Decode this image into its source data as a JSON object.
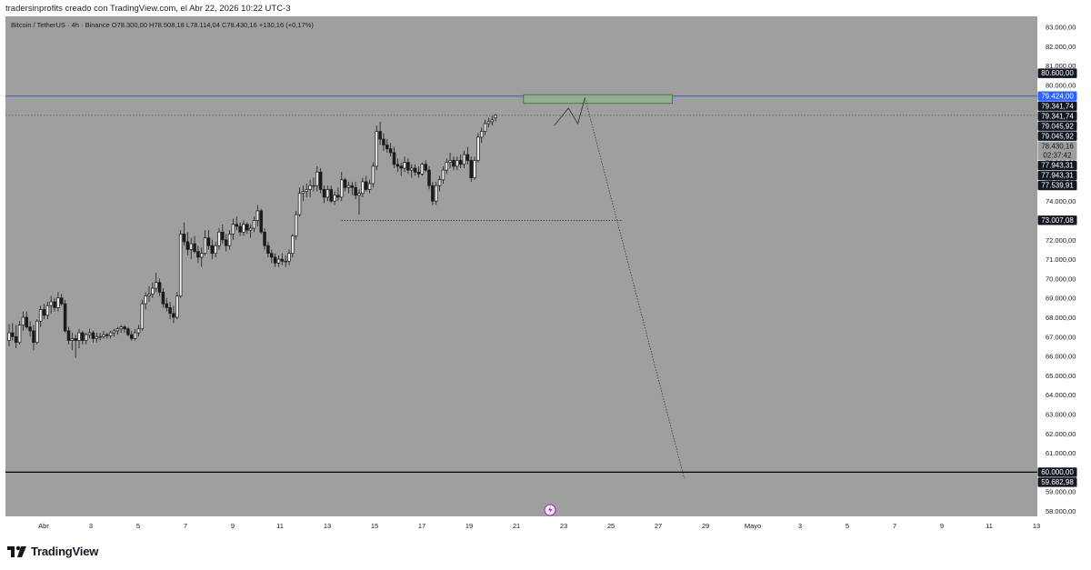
{
  "header": {
    "text": "tradersinprofits creado con TradingView.com, el Abr 22, 2026 10:22 UTC-3"
  },
  "legend": {
    "text": "Bitcoin / TetherUS · 4h · Binance   O78.300,00  H78.508,18  L78.114,04  C78.430,16  +130,16 (+0,17%)"
  },
  "footer": {
    "logo_text": "TradingView"
  },
  "colors": {
    "background": "#9f9f9f",
    "candle": "#1b1b1b",
    "resistance_line": "#2962ff",
    "support_line": "#000000",
    "zone_fill": "#8fb08f",
    "zone_border": "#3d6b3d",
    "axis_text": "#131722"
  },
  "chart_data": {
    "type": "candlestick",
    "symbol": "Bitcoin / TetherUS",
    "interval": "4h",
    "exchange": "Binance",
    "ohlc_last": {
      "open": 78300.0,
      "high": 78508.18,
      "low": 78114.04,
      "close": 78430.16,
      "change": 130.16,
      "change_pct": 0.17
    },
    "y_range": [
      57600,
      83300
    ],
    "y_ticks": [
      "83.000,00",
      "82.000,00",
      "81.000,00",
      "80.000,00",
      "79.000,00",
      "78.000,00",
      "77.000,00",
      "76.000,00",
      "75.000,00",
      "74.000,00",
      "73.000,00",
      "72.000,00",
      "71.000,00",
      "70.000,00",
      "69.000,00",
      "68.000,00",
      "67.000,00",
      "66.000,00",
      "65.000,00",
      "64.000,00",
      "63.000,00",
      "62.000,00",
      "61.000,00",
      "60.000,00",
      "59.000,00",
      "58.000,00"
    ],
    "y_tick_values": [
      83000,
      82000,
      81000,
      80000,
      79000,
      78000,
      77000,
      76000,
      75000,
      74000,
      73000,
      72000,
      71000,
      70000,
      69000,
      68000,
      67000,
      66000,
      65000,
      64000,
      63000,
      62000,
      61000,
      60000,
      59000,
      58000
    ],
    "x_labels": [
      {
        "label": "Abr",
        "day": 1
      },
      {
        "label": "3",
        "day": 3
      },
      {
        "label": "5",
        "day": 5
      },
      {
        "label": "7",
        "day": 7
      },
      {
        "label": "9",
        "day": 9
      },
      {
        "label": "11",
        "day": 11
      },
      {
        "label": "13",
        "day": 13
      },
      {
        "label": "15",
        "day": 15
      },
      {
        "label": "17",
        "day": 17
      },
      {
        "label": "19",
        "day": 19
      },
      {
        "label": "21",
        "day": 21
      },
      {
        "label": "23",
        "day": 23
      },
      {
        "label": "25",
        "day": 25
      },
      {
        "label": "27",
        "day": 27
      },
      {
        "label": "29",
        "day": 29
      },
      {
        "label": "Mayo",
        "day": 31
      },
      {
        "label": "3",
        "day": 33
      },
      {
        "label": "5",
        "day": 35
      },
      {
        "label": "7",
        "day": 37
      },
      {
        "label": "9",
        "day": 39
      },
      {
        "label": "11",
        "day": 41
      },
      {
        "label": "13",
        "day": 43
      }
    ],
    "price_badges": [
      {
        "label": "80.600,00",
        "value": 80600,
        "style": "dark"
      },
      {
        "label": "79.424,00",
        "value": 79424,
        "style": "blue"
      },
      {
        "label": "79.341,74",
        "value": 79341.74,
        "style": "dark"
      },
      {
        "label": "79.341,74",
        "value": 79341.74,
        "style": "dark"
      },
      {
        "label": "79.045,92",
        "value": 79045.92,
        "style": "dark"
      },
      {
        "label": "79.045,92",
        "value": 79045.92,
        "style": "dark"
      },
      {
        "label": "78.430,16",
        "value": 78430.16,
        "style": "current",
        "sublabel": "02:37:42"
      },
      {
        "label": "77.943,31",
        "value": 77943.31,
        "style": "dark"
      },
      {
        "label": "77.943,31",
        "value": 77943.31,
        "style": "dark"
      },
      {
        "label": "77.539,91",
        "value": 77539.91,
        "style": "dark"
      },
      {
        "label": "73.007,08",
        "value": 73007.08,
        "style": "dark"
      },
      {
        "label": "60.000,00",
        "value": 60000,
        "style": "dark"
      },
      {
        "label": "59.682,98",
        "value": 59682.98,
        "style": "dark"
      }
    ],
    "horizontal_lines": [
      {
        "value": 79424,
        "style": "blue"
      },
      {
        "value": 78430.16,
        "style": "dotted"
      },
      {
        "value": 60000,
        "style": "solid-black"
      }
    ],
    "support_segment": {
      "value": 73007.08,
      "from_day": 13.6,
      "to_day": 25.5
    },
    "zone": {
      "from_day": 21.3,
      "to_day": 27.6,
      "top": 79500,
      "bottom": 79045.92
    },
    "projection_path": [
      {
        "day": 22.6,
        "price": 77900
      },
      {
        "day": 23.2,
        "price": 78800
      },
      {
        "day": 23.6,
        "price": 78000
      },
      {
        "day": 23.9,
        "price": 79341.74
      },
      {
        "day": 28.1,
        "price": 59682.98
      }
    ],
    "candles": [
      [
        66800,
        67650,
        66500,
        67200
      ],
      [
        67200,
        67700,
        66800,
        67000
      ],
      [
        67000,
        67600,
        66400,
        66700
      ],
      [
        66700,
        67800,
        66600,
        67600
      ],
      [
        67600,
        68300,
        67300,
        68000
      ],
      [
        68000,
        68300,
        67400,
        67500
      ],
      [
        67500,
        67800,
        67000,
        67300
      ],
      [
        67300,
        67600,
        66300,
        66700
      ],
      [
        66700,
        67900,
        66600,
        67800
      ],
      [
        67800,
        68600,
        67500,
        68400
      ],
      [
        68400,
        68700,
        67900,
        68100
      ],
      [
        68100,
        68800,
        67900,
        68600
      ],
      [
        68600,
        69100,
        68200,
        68800
      ],
      [
        68800,
        69000,
        68300,
        68500
      ],
      [
        68500,
        69300,
        68300,
        69000
      ],
      [
        69000,
        69200,
        68600,
        68700
      ],
      [
        68700,
        68900,
        67200,
        67300
      ],
      [
        67300,
        67500,
        66600,
        66800
      ],
      [
        66800,
        67200,
        66300,
        66900
      ],
      [
        66900,
        67100,
        65900,
        66800
      ],
      [
        66800,
        67400,
        66400,
        67200
      ],
      [
        67200,
        67300,
        66600,
        66800
      ],
      [
        66800,
        67200,
        66600,
        67100
      ],
      [
        67100,
        67400,
        66900,
        67200
      ],
      [
        67200,
        67300,
        66700,
        66900
      ],
      [
        66900,
        67200,
        66700,
        67000
      ],
      [
        67000,
        67200,
        66800,
        67000
      ],
      [
        67000,
        67300,
        66900,
        67100
      ],
      [
        67100,
        67200,
        66900,
        67050
      ],
      [
        67050,
        67300,
        66900,
        67200
      ],
      [
        67200,
        67400,
        67000,
        67300
      ],
      [
        67300,
        67500,
        67100,
        67400
      ],
      [
        67400,
        67600,
        67200,
        67500
      ],
      [
        67500,
        67600,
        67200,
        67400
      ],
      [
        67400,
        67500,
        67000,
        67100
      ],
      [
        67100,
        67300,
        66800,
        66900
      ],
      [
        66900,
        67400,
        66800,
        67200
      ],
      [
        67200,
        67600,
        67000,
        67400
      ],
      [
        67400,
        68900,
        67300,
        68700
      ],
      [
        68700,
        69300,
        68400,
        69100
      ],
      [
        69100,
        69600,
        68800,
        69200
      ],
      [
        69200,
        69800,
        69000,
        69500
      ],
      [
        69500,
        70300,
        69300,
        69800
      ],
      [
        69800,
        70000,
        69100,
        69300
      ],
      [
        69300,
        69500,
        68500,
        68700
      ],
      [
        68700,
        69000,
        68300,
        68500
      ],
      [
        68500,
        68800,
        67900,
        68200
      ],
      [
        68200,
        68600,
        67700,
        68000
      ],
      [
        68000,
        69300,
        67900,
        69100
      ],
      [
        69100,
        72500,
        69000,
        72300
      ],
      [
        72300,
        72900,
        71700,
        71900
      ],
      [
        71900,
        72400,
        71200,
        71500
      ],
      [
        71500,
        72100,
        71000,
        71800
      ],
      [
        71800,
        72200,
        71300,
        71400
      ],
      [
        71400,
        71700,
        70800,
        71100
      ],
      [
        71100,
        71600,
        70600,
        71300
      ],
      [
        71300,
        72500,
        71200,
        72100
      ],
      [
        72100,
        72500,
        71500,
        71700
      ],
      [
        71700,
        72000,
        71000,
        71300
      ],
      [
        71300,
        71900,
        71100,
        71700
      ],
      [
        71700,
        72600,
        71500,
        72400
      ],
      [
        72400,
        72800,
        71800,
        72000
      ],
      [
        72000,
        72300,
        71400,
        71700
      ],
      [
        71700,
        72500,
        71500,
        72300
      ],
      [
        72300,
        73100,
        72000,
        72800
      ],
      [
        72800,
        73200,
        72500,
        72700
      ],
      [
        72700,
        72900,
        72200,
        72400
      ],
      [
        72400,
        73000,
        72200,
        72800
      ],
      [
        72800,
        72900,
        72300,
        72500
      ],
      [
        72500,
        72800,
        72100,
        72600
      ],
      [
        72600,
        73200,
        72400,
        73000
      ],
      [
        73000,
        73800,
        72700,
        73500
      ],
      [
        73500,
        73600,
        72300,
        72400
      ],
      [
        72400,
        72600,
        71500,
        71700
      ],
      [
        71700,
        71900,
        71100,
        71300
      ],
      [
        71300,
        71500,
        70800,
        71100
      ],
      [
        71100,
        71300,
        70600,
        70800
      ],
      [
        70800,
        71200,
        70600,
        71000
      ],
      [
        71000,
        71300,
        70700,
        70900
      ],
      [
        70900,
        71200,
        70600,
        70900
      ],
      [
        70900,
        71500,
        70700,
        71300
      ],
      [
        71300,
        72300,
        71100,
        72200
      ],
      [
        72200,
        73500,
        72000,
        73300
      ],
      [
        73300,
        74700,
        73200,
        74400
      ],
      [
        74400,
        74800,
        74000,
        74500
      ],
      [
        74500,
        74900,
        74200,
        74600
      ],
      [
        74600,
        75100,
        74200,
        74800
      ],
      [
        74800,
        75200,
        74500,
        74800
      ],
      [
        74800,
        75800,
        74500,
        75500
      ],
      [
        75500,
        75700,
        74400,
        74600
      ],
      [
        74600,
        74800,
        73900,
        74200
      ],
      [
        74200,
        74800,
        74000,
        74600
      ],
      [
        74600,
        74800,
        73900,
        74000
      ],
      [
        74000,
        74500,
        73800,
        74300
      ],
      [
        74300,
        74700,
        74000,
        74200
      ],
      [
        74200,
        75500,
        74000,
        75100
      ],
      [
        75100,
        75200,
        74500,
        74700
      ],
      [
        74700,
        75000,
        74400,
        74800
      ],
      [
        74800,
        75000,
        74300,
        74700
      ],
      [
        74700,
        75000,
        74100,
        74300
      ],
      [
        74300,
        74600,
        73300,
        74400
      ],
      [
        74400,
        75200,
        74200,
        75000
      ],
      [
        75000,
        75300,
        74500,
        74600
      ],
      [
        74600,
        75100,
        74400,
        74900
      ],
      [
        74900,
        76000,
        74700,
        75800
      ],
      [
        75800,
        77900,
        75600,
        77600
      ],
      [
        77600,
        78100,
        76900,
        77200
      ],
      [
        77200,
        77500,
        76600,
        76900
      ],
      [
        76900,
        77200,
        76500,
        76700
      ],
      [
        76700,
        77000,
        76300,
        76500
      ],
      [
        76500,
        76800,
        75700,
        75900
      ],
      [
        75900,
        76200,
        75500,
        75800
      ],
      [
        75800,
        76000,
        75300,
        75700
      ],
      [
        75700,
        76300,
        75500,
        76000
      ],
      [
        76000,
        76200,
        75400,
        75600
      ],
      [
        75600,
        75900,
        75200,
        75700
      ],
      [
        75700,
        75900,
        75300,
        75500
      ],
      [
        75500,
        75800,
        75200,
        75400
      ],
      [
        75400,
        76000,
        75300,
        75900
      ],
      [
        75900,
        76100,
        75500,
        75600
      ],
      [
        75600,
        75800,
        74600,
        74800
      ],
      [
        74800,
        75000,
        73800,
        74000
      ],
      [
        74000,
        75000,
        73800,
        74800
      ],
      [
        74800,
        75300,
        74500,
        75100
      ],
      [
        75100,
        75800,
        74900,
        75600
      ],
      [
        75600,
        76200,
        75400,
        76000
      ],
      [
        76000,
        76500,
        75700,
        76100
      ],
      [
        76100,
        76300,
        75600,
        75800
      ],
      [
        75800,
        76300,
        75600,
        76100
      ],
      [
        76100,
        76400,
        75700,
        75900
      ],
      [
        75900,
        76600,
        75700,
        76400
      ],
      [
        76400,
        76800,
        75900,
        76100
      ],
      [
        76100,
        76300,
        75000,
        75200
      ],
      [
        75200,
        76300,
        75100,
        76100
      ],
      [
        76100,
        77500,
        76000,
        77300
      ],
      [
        77300,
        77800,
        77000,
        77600
      ],
      [
        77600,
        78200,
        77400,
        78000
      ],
      [
        78000,
        78300,
        77800,
        78100
      ],
      [
        78100,
        78400,
        77900,
        78200
      ],
      [
        78300,
        78508.18,
        78114.04,
        78430.16
      ]
    ]
  }
}
